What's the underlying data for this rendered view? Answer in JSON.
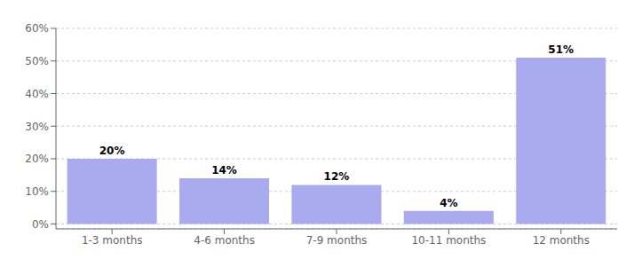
{
  "chart_data": {
    "type": "bar",
    "categories": [
      "1-3 months",
      "4-6 months",
      "7-9 months",
      "10-11 months",
      "12 months"
    ],
    "values": [
      20,
      14,
      12,
      4,
      51
    ],
    "value_labels": [
      "20%",
      "14%",
      "12%",
      "4%",
      "51%"
    ],
    "data_labels": true,
    "color": "#aaaaee",
    "ylim": [
      -1.5,
      60
    ],
    "yticks": [
      {
        "value": 0,
        "label": "0%"
      },
      {
        "value": 10,
        "label": "10%"
      },
      {
        "value": 20,
        "label": "20%"
      },
      {
        "value": 30,
        "label": "30%"
      },
      {
        "value": 40,
        "label": "40%"
      },
      {
        "value": 50,
        "label": "50%"
      },
      {
        "value": 60,
        "label": "60%"
      }
    ],
    "grid": true
  }
}
